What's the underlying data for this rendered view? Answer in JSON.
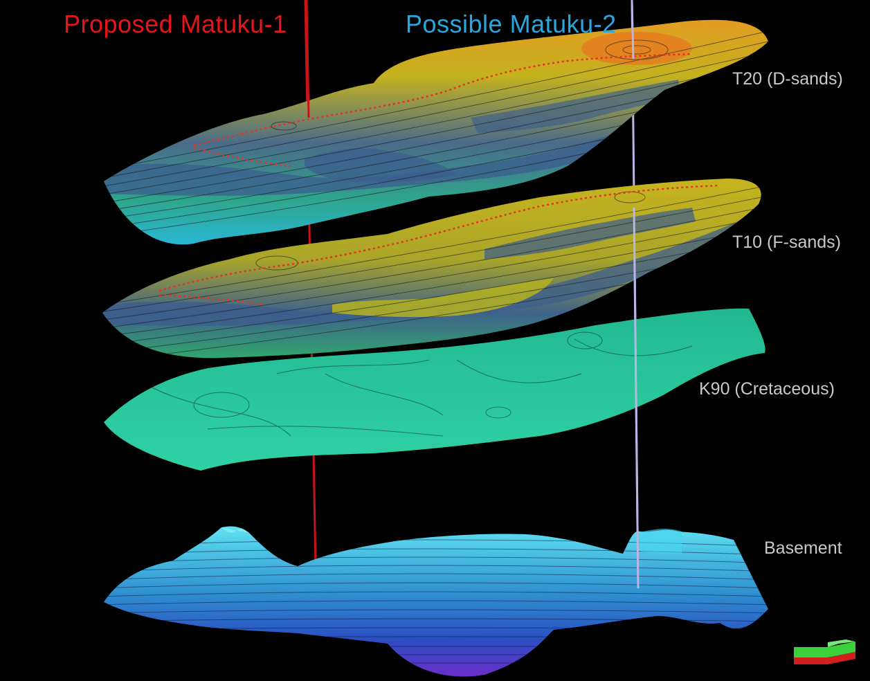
{
  "wells": [
    {
      "name": "Proposed Matuku-1",
      "color": "#e8141b"
    },
    {
      "name": "Possible Matuku-2",
      "color": "#2aa7de"
    }
  ],
  "horizons": [
    {
      "label": "T20 (D-sands)"
    },
    {
      "label": "T10 (F-sands)"
    },
    {
      "label": "K90 (Cretaceous)"
    },
    {
      "label": "Basement"
    }
  ],
  "colors": {
    "background": "#000000",
    "well_1": "#c81418",
    "well_2": "#b9b6e6",
    "reservoir_high": "#e0a31e",
    "reservoir_mid": "#b7b51c",
    "reservoir_low": "#35508a",
    "cretaceous": "#27c79a",
    "basement": "#2fb6e0"
  },
  "icons": {
    "orientation_indicator": "orientation-cube-icon"
  }
}
